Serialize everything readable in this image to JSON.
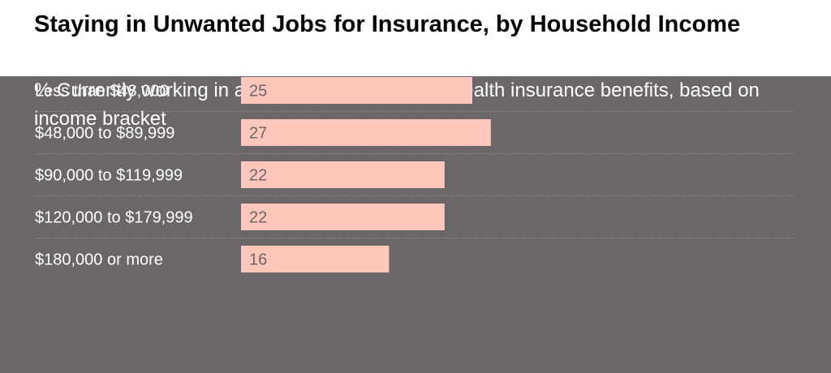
{
  "colors": {
    "background": "#6b6667",
    "bar": "#ffc7bb",
    "text_light": "#ffffff",
    "value_text": "#6b6667",
    "gridline": "#a6a1a2"
  },
  "chart_data": {
    "type": "bar",
    "orientation": "horizontal",
    "title": "Staying in Unwanted Jobs for Insurance, by Household Income",
    "subtitle": "% Currently working in an unwanted job to keep health insurance benefits, based on income bracket",
    "categories": [
      "Less than $48,000",
      "$48,000 to $89,999",
      "$90,000 to $119,999",
      "$120,000 to $179,999",
      "$180,000 or more"
    ],
    "values": [
      25,
      27,
      22,
      22,
      16
    ],
    "xlim": [
      0,
      60
    ],
    "grid": false,
    "legend": "none"
  }
}
